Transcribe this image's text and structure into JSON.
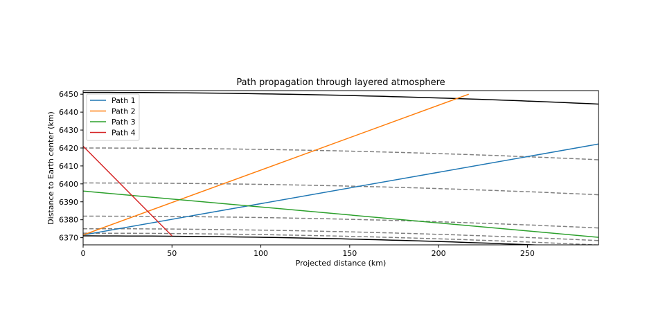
{
  "chart_data": {
    "type": "line",
    "title": "Path propagation through layered atmosphere",
    "xlabel": "Projected distance (km)",
    "ylabel": "Distance to Earth center (km)",
    "xlim": [
      0,
      290
    ],
    "ylim": [
      6366,
      6452
    ],
    "xticks": [
      0,
      50,
      100,
      150,
      200,
      250
    ],
    "yticks": [
      6370,
      6380,
      6390,
      6400,
      6410,
      6420,
      6430,
      6440,
      6450
    ],
    "grid": false,
    "legend_position": "top-left",
    "series": [
      {
        "name": "Path 1",
        "color": "#1f77b4",
        "x": [
          0,
          290
        ],
        "y": [
          6371.5,
          6422.2
        ]
      },
      {
        "name": "Path 2",
        "color": "#ff7f0e",
        "x": [
          0,
          217
        ],
        "y": [
          6371.5,
          6450.0
        ]
      },
      {
        "name": "Path 3",
        "color": "#2ca02c",
        "x": [
          0,
          290
        ],
        "y": [
          6396.0,
          6370.2
        ]
      },
      {
        "name": "Path 4",
        "color": "#d62728",
        "x": [
          0,
          50
        ],
        "y": [
          6421.0,
          6371.0
        ]
      }
    ],
    "boundaries": [
      {
        "style": "solid",
        "color": "#000000",
        "r": 6451
      },
      {
        "style": "dashed",
        "color": "#808080",
        "r": 6420
      },
      {
        "style": "dashed",
        "color": "#808080",
        "r": 6400.5
      },
      {
        "style": "dashed",
        "color": "#808080",
        "r": 6382
      },
      {
        "style": "dashed",
        "color": "#808080",
        "r": 6375
      },
      {
        "style": "dashed",
        "color": "#808080",
        "r": 6372.5
      },
      {
        "style": "solid",
        "color": "#000000",
        "r": 6371
      }
    ]
  }
}
